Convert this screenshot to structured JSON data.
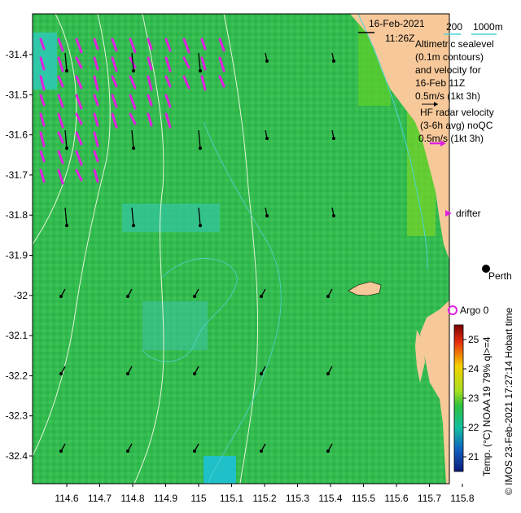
{
  "header": {
    "date": "16-Feb-2021",
    "time": "11:26Z",
    "scale_200": "200",
    "scale_1000": "1000m"
  },
  "legend": {
    "altimetric_lines": [
      "Altimetric sealevel",
      "(0.1m contours)",
      "and velocity for",
      "16-Feb 11Z",
      "0.5m/s (1kt 3h)"
    ],
    "hf_lines": [
      "HF radar velocity",
      "(3-6h avg) noQC",
      "0.5m/s (1kt 3h)"
    ],
    "drifter_label": "drifter",
    "argo_label": "Argo 0"
  },
  "places": {
    "city": "Perth"
  },
  "axes": {
    "lat_ticks": [
      "-31.4",
      "-31.5",
      "-31.6",
      "-31.7",
      "-31.8",
      "-31.9",
      "-32",
      "-32.1",
      "-32.2",
      "-32.3",
      "-32.4"
    ],
    "lon_ticks": [
      "114.6",
      "114.7",
      "114.8",
      "114.9",
      "115",
      "115.1",
      "115.2",
      "115.3",
      "115.4",
      "115.5",
      "115.6",
      "115.7",
      "115.8"
    ]
  },
  "colorbar": {
    "ticks": [
      "25",
      "24",
      "23",
      "22",
      "21"
    ],
    "label": "Temp. (°C) NOAA 19 79% ql>=4",
    "range": [
      20.5,
      25.5
    ]
  },
  "credit": {
    "text": "© IMOS 23-Feb-2021 17:27:14 Hobart time"
  },
  "colors": {
    "land": "#f7c99a",
    "sea": "#2eb84e",
    "hf_arrow": "#e020e0",
    "altimetry_arrow": "#000000",
    "contour": "#e6f5d8",
    "isobath": "#4fd3d3"
  }
}
